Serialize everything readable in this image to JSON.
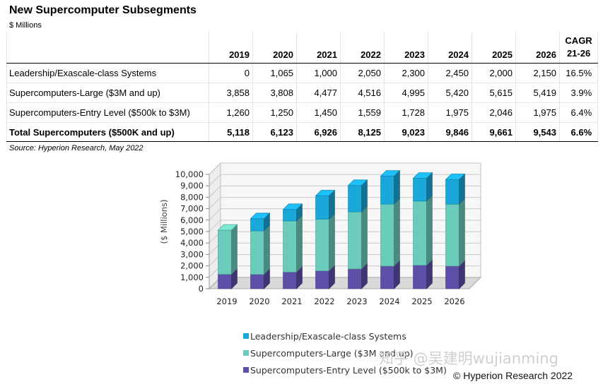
{
  "table": {
    "title": "New Supercomputer Subsegments",
    "unit": "$ Millions",
    "years": [
      "2019",
      "2020",
      "2021",
      "2022",
      "2023",
      "2024",
      "2025",
      "2026"
    ],
    "cagr_header_1": "CAGR",
    "cagr_header_2": "21-26",
    "rows": [
      {
        "label": "Leadership/Exascale-class Systems",
        "values": [
          "0",
          "1,065",
          "1,000",
          "2,050",
          "2,300",
          "2,450",
          "2,000",
          "2,150"
        ],
        "cagr": "16.5%"
      },
      {
        "label": "Supercomputers-Large ($3M and up)",
        "values": [
          "3,858",
          "3,808",
          "4,477",
          "4,516",
          "4,995",
          "5,420",
          "5,615",
          "5,419"
        ],
        "cagr": "3.9%"
      },
      {
        "label": "Supercomputers-Entry Level ($500k to $3M)",
        "values": [
          "1,260",
          "1,250",
          "1,450",
          "1,559",
          "1,728",
          "1,975",
          "2,046",
          "1,975"
        ],
        "cagr": "6.4%"
      }
    ],
    "total": {
      "label": "Total Supercomputers ($500K and up)",
      "values": [
        "5,118",
        "6,123",
        "6,926",
        "8,125",
        "9,023",
        "9,846",
        "9,661",
        "9,543"
      ],
      "cagr": "6.6%"
    },
    "source": "Source: Hyperion Research, May 2022"
  },
  "chart_data": {
    "type": "bar",
    "stacked": true,
    "categories": [
      "2019",
      "2020",
      "2021",
      "2022",
      "2023",
      "2024",
      "2025",
      "2026"
    ],
    "ylabel": "($ Millions)",
    "ylim": [
      0,
      10000
    ],
    "yticks": [
      0,
      1000,
      2000,
      3000,
      4000,
      5000,
      6000,
      7000,
      8000,
      9000,
      10000
    ],
    "ytick_labels": [
      "0",
      "1,000",
      "2,000",
      "3,000",
      "4,000",
      "5,000",
      "6,000",
      "7,000",
      "8,000",
      "9,000",
      "10,000"
    ],
    "grid": true,
    "legend_position": "bottom",
    "series": [
      {
        "name": "Supercomputers-Entry Level ($500k to $3M)",
        "color": "#5b4fa8",
        "values": [
          1260,
          1250,
          1450,
          1559,
          1728,
          1975,
          2046,
          1975
        ]
      },
      {
        "name": "Supercomputers-Large ($3M and up)",
        "color": "#6cccbc",
        "values": [
          3858,
          3808,
          4477,
          4516,
          4995,
          5420,
          5615,
          5419
        ]
      },
      {
        "name": "Leadership/Exascale-class Systems",
        "color": "#1aa7d9",
        "values": [
          0,
          1065,
          1000,
          2050,
          2300,
          2450,
          2000,
          2150
        ]
      }
    ],
    "legend_order": [
      2,
      1,
      0
    ]
  },
  "copyright": "© Hyperion Research 2022",
  "watermark": "知乎 @吴建明wujianming"
}
